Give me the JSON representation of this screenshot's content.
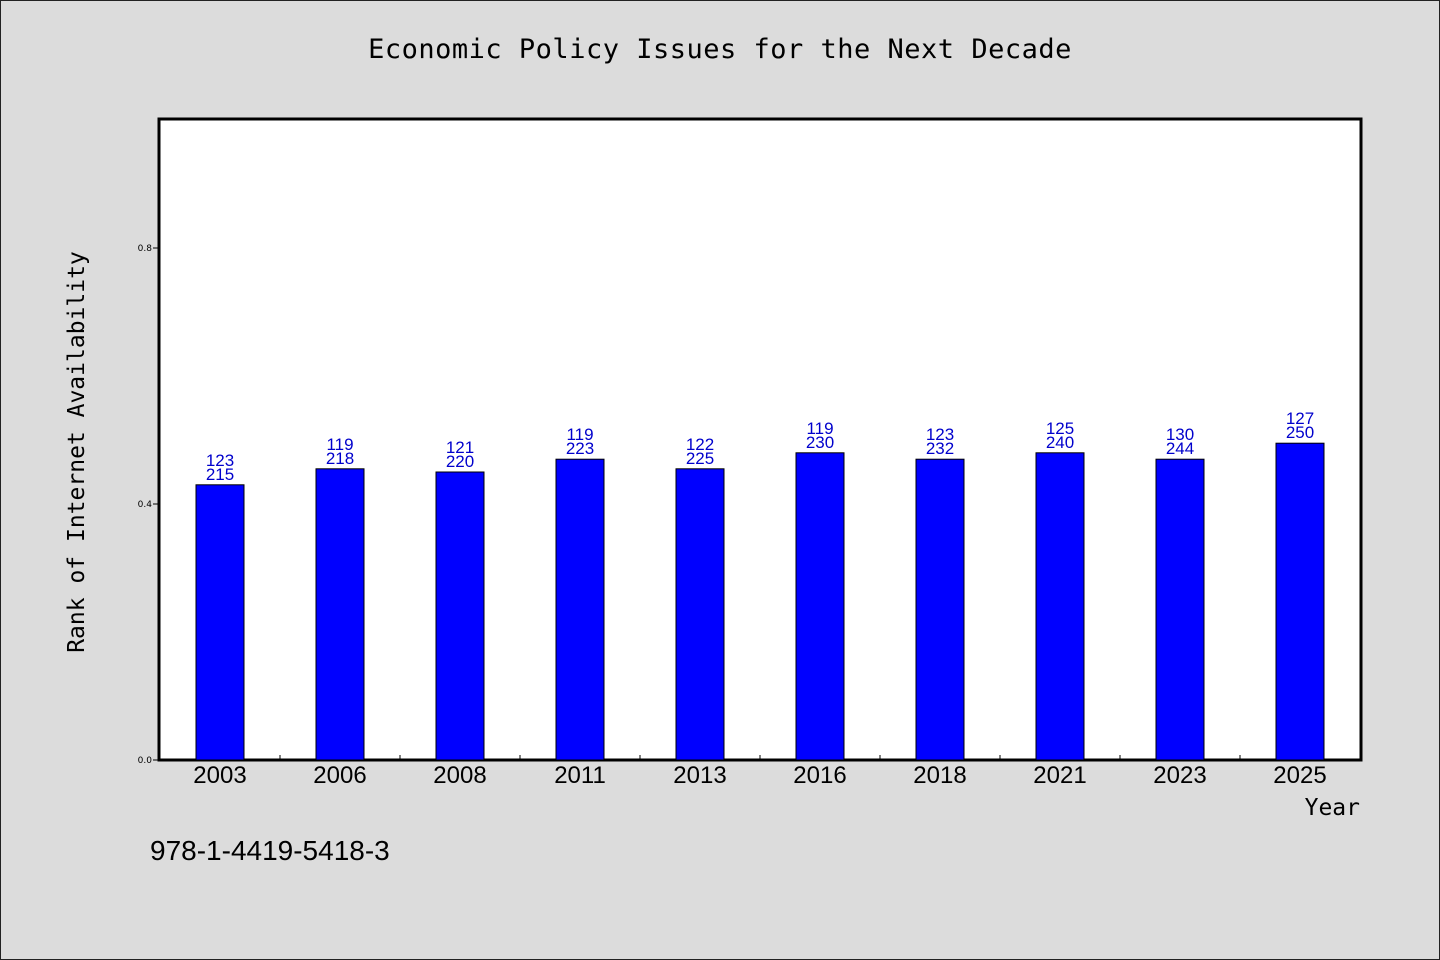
{
  "chart_data": {
    "type": "bar",
    "title": "Economic Policy Issues for the Next Decade",
    "xlabel": "Year",
    "ylabel": "Rank of Internet Availability",
    "ylim": [
      0,
      1.0
    ],
    "yticks": [
      "0.0",
      "0.4",
      "0.8"
    ],
    "categories": [
      "2003",
      "2006",
      "2008",
      "2011",
      "2013",
      "2016",
      "2018",
      "2021",
      "2023",
      "2025"
    ],
    "values": [
      0.43,
      0.455,
      0.45,
      0.47,
      0.455,
      0.48,
      0.47,
      0.48,
      0.47,
      0.495
    ],
    "labels_top": [
      "123",
      "119",
      "121",
      "119",
      "122",
      "119",
      "123",
      "125",
      "130",
      "127"
    ],
    "labels_bottom": [
      "215",
      "218",
      "220",
      "223",
      "225",
      "230",
      "232",
      "240",
      "244",
      "250"
    ],
    "bar_color": "#0000ff",
    "label_color": "#0000cc",
    "grid": false
  },
  "footer": {
    "isbn": "978-1-4419-5418-3"
  }
}
